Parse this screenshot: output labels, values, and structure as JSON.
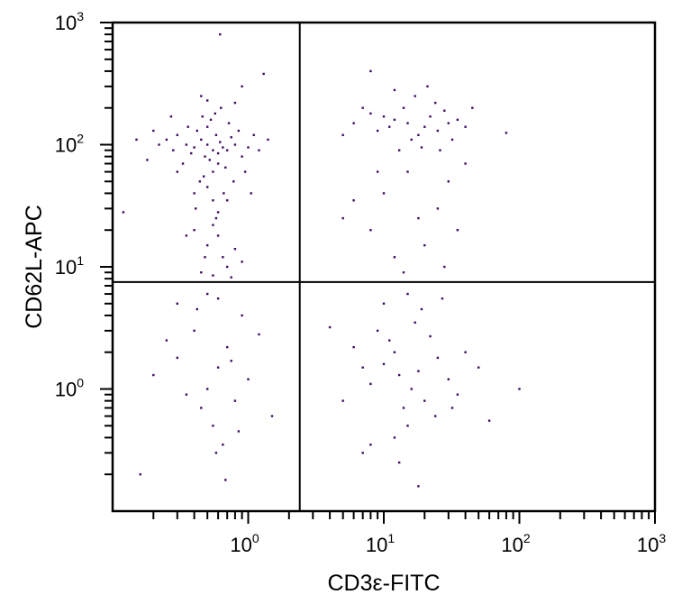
{
  "chart_data": {
    "type": "scatter",
    "title": "",
    "xlabel": "CD3ε-FITC",
    "ylabel": "CD62L-APC",
    "x_scale": "log",
    "y_scale": "log",
    "xlim": [
      0.1,
      1000
    ],
    "ylim": [
      0.1,
      1000
    ],
    "grid": false,
    "x_ticks": [
      {
        "base": "10",
        "exp": "0",
        "value": 1
      },
      {
        "base": "10",
        "exp": "1",
        "value": 10
      },
      {
        "base": "10",
        "exp": "2",
        "value": 100
      },
      {
        "base": "10",
        "exp": "3",
        "value": 1000
      }
    ],
    "y_ticks": [
      {
        "base": "10",
        "exp": "0",
        "value": 1
      },
      {
        "base": "10",
        "exp": "1",
        "value": 10
      },
      {
        "base": "10",
        "exp": "2",
        "value": 100
      },
      {
        "base": "10",
        "exp": "3",
        "value": 1000
      }
    ],
    "quadrant_gate": {
      "x": 2.4,
      "y": 7.5
    },
    "point_color": "#3d0c5e",
    "points": [
      [
        0.55,
        90
      ],
      [
        0.5,
        100
      ],
      [
        0.6,
        85
      ],
      [
        0.45,
        110
      ],
      [
        0.65,
        95
      ],
      [
        0.52,
        75
      ],
      [
        0.58,
        120
      ],
      [
        0.48,
        80
      ],
      [
        0.62,
        105
      ],
      [
        0.4,
        95
      ],
      [
        0.7,
        90
      ],
      [
        0.55,
        60
      ],
      [
        0.5,
        140
      ],
      [
        0.35,
        100
      ],
      [
        0.75,
        115
      ],
      [
        0.6,
        70
      ],
      [
        0.42,
        130
      ],
      [
        0.68,
        65
      ],
      [
        0.53,
        160
      ],
      [
        0.47,
        55
      ],
      [
        0.3,
        120
      ],
      [
        0.8,
        100
      ],
      [
        0.38,
        85
      ],
      [
        0.9,
        80
      ],
      [
        0.57,
        180
      ],
      [
        0.44,
        50
      ],
      [
        0.72,
        150
      ],
      [
        0.33,
        70
      ],
      [
        0.85,
        130
      ],
      [
        0.5,
        45
      ],
      [
        0.25,
        110
      ],
      [
        1.0,
        95
      ],
      [
        0.63,
        200
      ],
      [
        0.4,
        40
      ],
      [
        0.28,
        90
      ],
      [
        1.1,
        120
      ],
      [
        0.46,
        170
      ],
      [
        0.78,
        50
      ],
      [
        0.36,
        140
      ],
      [
        0.66,
        40
      ],
      [
        0.22,
        100
      ],
      [
        0.95,
        60
      ],
      [
        0.55,
        35
      ],
      [
        0.3,
        60
      ],
      [
        1.2,
        90
      ],
      [
        0.5,
        230
      ],
      [
        0.7,
        35
      ],
      [
        0.41,
        30
      ],
      [
        0.6,
        28
      ],
      [
        0.2,
        130
      ],
      [
        0.15,
        110
      ],
      [
        1.4,
        110
      ],
      [
        0.45,
        250
      ],
      [
        0.8,
        220
      ],
      [
        1.3,
        380
      ],
      [
        0.9,
        300
      ],
      [
        0.62,
        800
      ],
      [
        0.18,
        75
      ],
      [
        0.27,
        170
      ],
      [
        1.05,
        40
      ],
      [
        0.55,
        22
      ],
      [
        0.6,
        18
      ],
      [
        0.5,
        15
      ],
      [
        0.65,
        12
      ],
      [
        0.7,
        10
      ],
      [
        0.45,
        9
      ],
      [
        0.55,
        8.5
      ],
      [
        0.8,
        14
      ],
      [
        0.4,
        20
      ],
      [
        0.9,
        11
      ],
      [
        0.58,
        25
      ],
      [
        0.75,
        8.2
      ],
      [
        0.48,
        12
      ],
      [
        0.12,
        28
      ],
      [
        0.35,
        18
      ],
      [
        0.6,
        1.5
      ],
      [
        0.5,
        1.0
      ],
      [
        0.7,
        2.2
      ],
      [
        0.4,
        3.0
      ],
      [
        0.8,
        0.8
      ],
      [
        0.55,
        0.5
      ],
      [
        0.3,
        1.8
      ],
      [
        0.9,
        4.0
      ],
      [
        0.65,
        0.35
      ],
      [
        0.45,
        0.7
      ],
      [
        1.0,
        1.2
      ],
      [
        0.25,
        2.5
      ],
      [
        0.6,
        5.5
      ],
      [
        0.35,
        0.9
      ],
      [
        0.75,
        1.7
      ],
      [
        0.5,
        6.0
      ],
      [
        1.2,
        2.8
      ],
      [
        0.2,
        1.3
      ],
      [
        0.42,
        4.5
      ],
      [
        0.85,
        0.45
      ],
      [
        0.58,
        0.3
      ],
      [
        0.68,
        0.18
      ],
      [
        0.16,
        0.2
      ],
      [
        1.5,
        0.6
      ],
      [
        0.3,
        5.0
      ],
      [
        15,
        150
      ],
      [
        12,
        160
      ],
      [
        20,
        140
      ],
      [
        10,
        170
      ],
      [
        25,
        130
      ],
      [
        18,
        120
      ],
      [
        8,
        180
      ],
      [
        14,
        200
      ],
      [
        22,
        170
      ],
      [
        30,
        150
      ],
      [
        16,
        110
      ],
      [
        11,
        140
      ],
      [
        28,
        190
      ],
      [
        9,
        130
      ],
      [
        19,
        95
      ],
      [
        35,
        160
      ],
      [
        6,
        150
      ],
      [
        24,
        220
      ],
      [
        13,
        90
      ],
      [
        40,
        140
      ],
      [
        7,
        200
      ],
      [
        17,
        250
      ],
      [
        32,
        110
      ],
      [
        12,
        280
      ],
      [
        5,
        120
      ],
      [
        26,
        90
      ],
      [
        21,
        300
      ],
      [
        45,
        200
      ],
      [
        8,
        400
      ],
      [
        80,
        125
      ],
      [
        15,
        60
      ],
      [
        10,
        40
      ],
      [
        25,
        30
      ],
      [
        8,
        20
      ],
      [
        20,
        15
      ],
      [
        30,
        50
      ],
      [
        12,
        12
      ],
      [
        6,
        35
      ],
      [
        18,
        25
      ],
      [
        35,
        20
      ],
      [
        9,
        60
      ],
      [
        28,
        10
      ],
      [
        14,
        9
      ],
      [
        40,
        70
      ],
      [
        5,
        25
      ],
      [
        13,
        1.3
      ],
      [
        10,
        1.6
      ],
      [
        16,
        1.0
      ],
      [
        12,
        2.0
      ],
      [
        18,
        1.4
      ],
      [
        8,
        1.1
      ],
      [
        20,
        0.8
      ],
      [
        14,
        0.7
      ],
      [
        11,
        2.5
      ],
      [
        25,
        1.8
      ],
      [
        9,
        3.0
      ],
      [
        15,
        0.5
      ],
      [
        22,
        2.7
      ],
      [
        7,
        1.5
      ],
      [
        30,
        1.2
      ],
      [
        17,
        3.5
      ],
      [
        6,
        2.2
      ],
      [
        12,
        0.4
      ],
      [
        35,
        0.9
      ],
      [
        19,
        4.5
      ],
      [
        5,
        0.8
      ],
      [
        27,
        5.5
      ],
      [
        10,
        5.0
      ],
      [
        40,
        2.0
      ],
      [
        8,
        0.35
      ],
      [
        15,
        6.0
      ],
      [
        24,
        0.6
      ],
      [
        4,
        3.2
      ],
      [
        50,
        1.5
      ],
      [
        13,
        0.25
      ],
      [
        18,
        0.16
      ],
      [
        7,
        0.3
      ],
      [
        60,
        0.55
      ],
      [
        32,
        0.7
      ],
      [
        100,
        1.0
      ]
    ]
  }
}
